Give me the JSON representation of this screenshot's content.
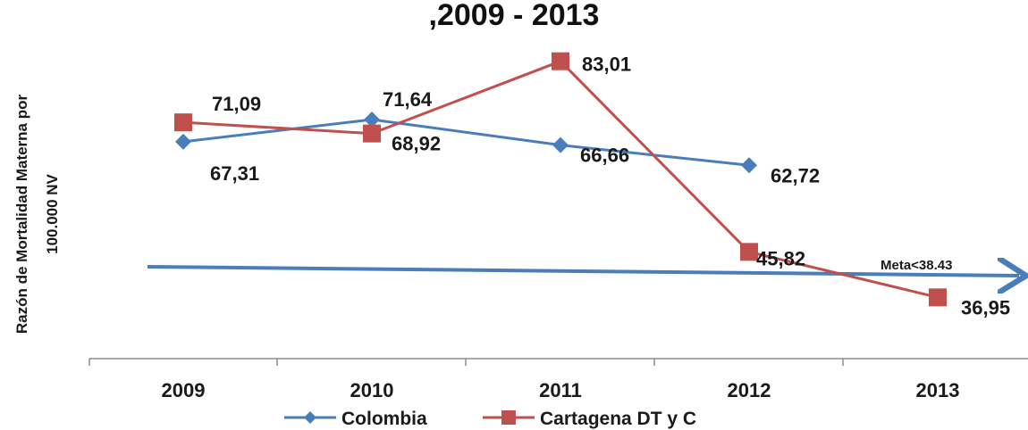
{
  "chart_data": {
    "type": "line",
    "title": ",2009 - 2013",
    "ylabel_lines": [
      "Razón de Mortalidad Materna por",
      "100.000 NV"
    ],
    "categories": [
      "2009",
      "2010",
      "2011",
      "2012",
      "2013"
    ],
    "ylim": [
      25,
      88
    ],
    "grid": false,
    "legend_position": "bottom",
    "series": [
      {
        "name": "Colombia",
        "color": "#4a7ebb",
        "marker": "diamond",
        "values": [
          67.31,
          71.64,
          66.66,
          62.72,
          null
        ],
        "labels": [
          "67,31",
          "71,64",
          "66,66",
          "62,72",
          null
        ]
      },
      {
        "name": "Cartagena DT y C",
        "color": "#c0504d",
        "marker": "square",
        "values": [
          71.09,
          68.92,
          83.01,
          45.82,
          36.95
        ],
        "labels": [
          "71,09",
          "68,92",
          "83,01",
          "45,82",
          "36,95"
        ]
      }
    ],
    "annotations": [
      {
        "text": "Meta<38.43",
        "color": "#4a7ebb",
        "type": "arrow-line"
      }
    ]
  }
}
